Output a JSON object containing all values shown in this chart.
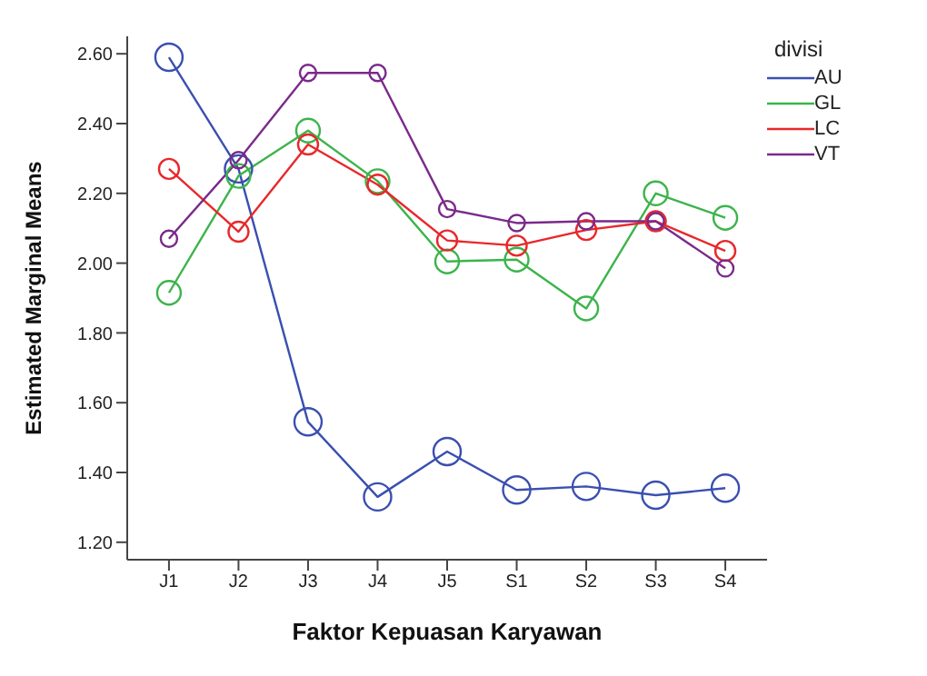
{
  "chart_data": {
    "type": "line",
    "xlabel": "Faktor Kepuasan Karyawan",
    "ylabel": "Estimated Marginal Means",
    "legend_title": "divisi",
    "categories": [
      "J1",
      "J2",
      "J3",
      "J4",
      "J5",
      "S1",
      "S2",
      "S3",
      "S4"
    ],
    "series": [
      {
        "name": "AU",
        "color": "#3a4fb0",
        "values": [
          2.59,
          2.27,
          1.545,
          1.33,
          1.46,
          1.35,
          1.36,
          1.335,
          1.355
        ]
      },
      {
        "name": "GL",
        "color": "#3cb44b",
        "values": [
          1.915,
          2.25,
          2.38,
          2.235,
          2.005,
          2.01,
          1.87,
          2.2,
          2.13
        ]
      },
      {
        "name": "LC",
        "color": "#e8282b",
        "values": [
          2.27,
          2.09,
          2.34,
          2.225,
          2.065,
          2.05,
          2.095,
          2.12,
          2.035
        ]
      },
      {
        "name": "VT",
        "color": "#7a2a8a",
        "values": [
          2.07,
          2.295,
          2.545,
          2.545,
          2.155,
          2.115,
          2.12,
          2.12,
          1.985
        ]
      }
    ],
    "ylim": [
      1.15,
      2.65
    ],
    "yticks": [
      {
        "value": 1.2,
        "label": "1.20"
      },
      {
        "value": 1.4,
        "label": "1.40"
      },
      {
        "value": 1.6,
        "label": "1.60"
      },
      {
        "value": 1.8,
        "label": "1.80"
      },
      {
        "value": 2.0,
        "label": "2.00"
      },
      {
        "value": 2.2,
        "label": "2.20"
      },
      {
        "value": 2.4,
        "label": "2.40"
      },
      {
        "value": 2.6,
        "label": "2.60"
      }
    ],
    "marker": "circle",
    "line_style": "solid",
    "grid": false,
    "legend": "top right"
  }
}
